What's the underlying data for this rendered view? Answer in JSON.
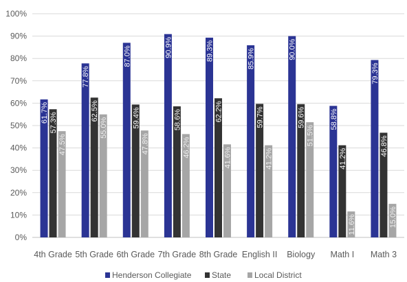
{
  "chart_data": {
    "type": "bar",
    "title": "",
    "xlabel": "",
    "ylabel": "",
    "ylim": [
      0,
      100
    ],
    "y_tick_labels": [
      "0%",
      "10%",
      "20%",
      "30%",
      "40%",
      "50%",
      "60%",
      "70%",
      "80%",
      "90%",
      "100%"
    ],
    "grid": true,
    "legend_position": "bottom",
    "categories": [
      "4th Grade",
      "5th Grade",
      "6th Grade",
      "7th Grade",
      "8th Grade",
      "English II",
      "Biology",
      "Math I",
      "Math 3"
    ],
    "series": [
      {
        "name": "Henderson Collegiate",
        "color": "#2b3494",
        "values": [
          61.7,
          77.8,
          87.0,
          90.9,
          89.3,
          85.9,
          90.0,
          58.8,
          79.3
        ],
        "labels": [
          "61.7%",
          "77.8%",
          "87.0%",
          "90.9%",
          "89.3%",
          "85.9%",
          "90.0%",
          "58.8%",
          "79.3%"
        ]
      },
      {
        "name": "State",
        "color": "#333333",
        "values": [
          57.3,
          62.5,
          59.4,
          58.6,
          62.2,
          59.7,
          59.6,
          41.2,
          46.8
        ],
        "labels": [
          "57.3%",
          "62.5%",
          "59.4%",
          "58.6%",
          "62.2%",
          "59.7%",
          "59.6%",
          "41.2%",
          "46.8%"
        ]
      },
      {
        "name": "Local District",
        "color": "#a6a6a6",
        "values": [
          47.5,
          55.0,
          47.8,
          46.2,
          41.6,
          41.2,
          51.5,
          11.6,
          15.0
        ],
        "labels": [
          "47.5%",
          "55.0%",
          "47.8%",
          "46.2%",
          "41.6%",
          "41.2%",
          "51.5%",
          "11.6%",
          "15.0%"
        ]
      }
    ]
  }
}
